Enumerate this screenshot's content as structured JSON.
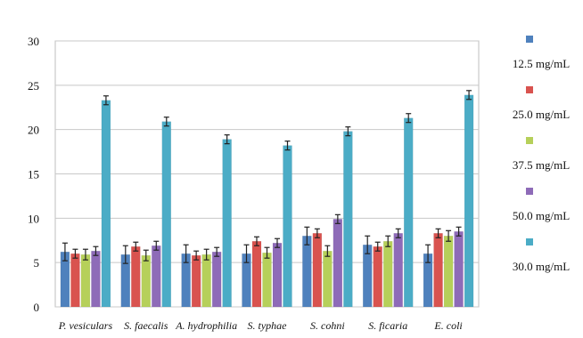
{
  "chart_data": {
    "type": "bar",
    "title": "",
    "xlabel": "",
    "ylabel": "",
    "ylim": [
      0,
      30
    ],
    "yticks": [
      0,
      5,
      10,
      15,
      20,
      25,
      30
    ],
    "grid": true,
    "legend_position": "right",
    "error_bars": true,
    "categories": [
      "P. vesiculars",
      "S. faecalis",
      "A. hydrophilia",
      "S. typhae",
      "S. cohni",
      "S. ficaria",
      "E. coli"
    ],
    "series": [
      {
        "name": "12.5 mg/mL",
        "color": "#4f81bd",
        "values": [
          6.2,
          5.9,
          6.0,
          6.0,
          8.0,
          7.0,
          6.0
        ],
        "errors": [
          1.0,
          1.0,
          1.0,
          1.0,
          1.0,
          1.0,
          1.0
        ]
      },
      {
        "name": "25.0 mg/mL",
        "color": "#d9534f",
        "values": [
          6.0,
          6.8,
          5.8,
          7.4,
          8.3,
          6.8,
          8.3
        ],
        "errors": [
          0.5,
          0.5,
          0.5,
          0.5,
          0.5,
          0.5,
          0.5
        ]
      },
      {
        "name": "37.5 mg/mL",
        "color": "#b6d05a",
        "values": [
          5.9,
          5.8,
          5.9,
          6.1,
          6.3,
          7.4,
          8.0
        ],
        "errors": [
          0.6,
          0.6,
          0.6,
          0.6,
          0.6,
          0.6,
          0.6
        ]
      },
      {
        "name": "50.0 mg/mL",
        "color": "#8e6bb8",
        "values": [
          6.3,
          6.9,
          6.2,
          7.2,
          9.9,
          8.3,
          8.5
        ],
        "errors": [
          0.5,
          0.5,
          0.5,
          0.5,
          0.5,
          0.5,
          0.5
        ]
      },
      {
        "name": "30.0 mg/mL",
        "color": "#4bacc6",
        "values": [
          23.3,
          20.9,
          18.9,
          18.2,
          19.8,
          21.3,
          23.9
        ],
        "errors": [
          0.5,
          0.5,
          0.5,
          0.5,
          0.5,
          0.5,
          0.5
        ]
      }
    ]
  }
}
